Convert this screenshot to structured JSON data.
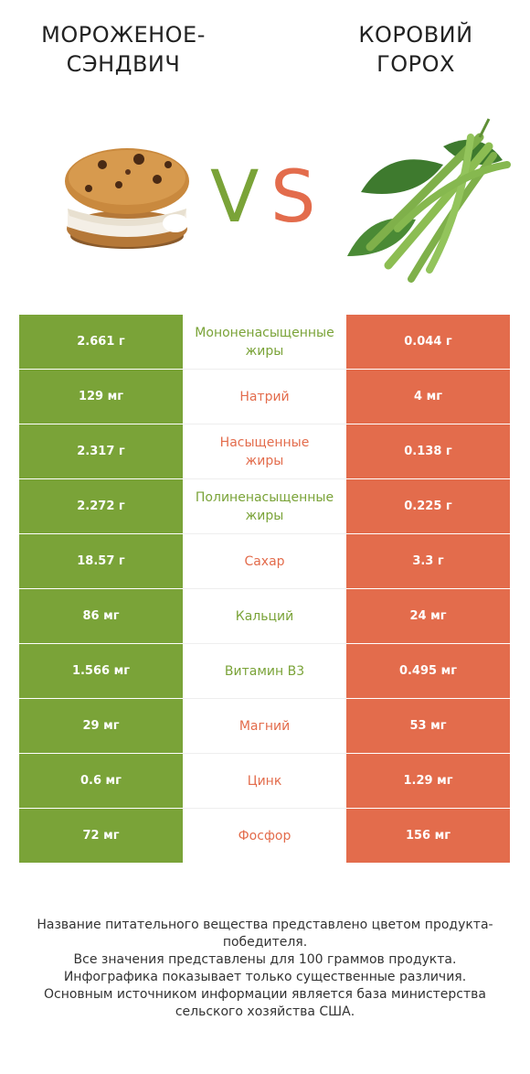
{
  "header": {
    "left_title": "МОРОЖЕНОЕ-\nСЭНДВИЧ",
    "right_title": "КОРОВИЙ\nГОРОХ",
    "vs_v": "V",
    "vs_s": "S"
  },
  "colors": {
    "left_green": "#7aa338",
    "right_red": "#e36c4c"
  },
  "rows": [
    {
      "left": "2.661 г",
      "name": "Мононенасыщенные\nжиры",
      "right": "0.044 г",
      "winner": "left"
    },
    {
      "left": "129 мг",
      "name": "Натрий",
      "right": "4 мг",
      "winner": "right"
    },
    {
      "left": "2.317 г",
      "name": "Насыщенные\nжиры",
      "right": "0.138 г",
      "winner": "right"
    },
    {
      "left": "2.272 г",
      "name": "Полиненасыщенные\nжиры",
      "right": "0.225 г",
      "winner": "left"
    },
    {
      "left": "18.57 г",
      "name": "Сахар",
      "right": "3.3 г",
      "winner": "right"
    },
    {
      "left": "86 мг",
      "name": "Кальций",
      "right": "24 мг",
      "winner": "left"
    },
    {
      "left": "1.566 мг",
      "name": "Витамин B3",
      "right": "0.495 мг",
      "winner": "left"
    },
    {
      "left": "29 мг",
      "name": "Магний",
      "right": "53 мг",
      "winner": "right"
    },
    {
      "left": "0.6 мг",
      "name": "Цинк",
      "right": "1.29 мг",
      "winner": "right"
    },
    {
      "left": "72 мг",
      "name": "Фосфор",
      "right": "156 мг",
      "winner": "right"
    }
  ],
  "footer": {
    "line1": "Название питательного вещества представлено цветом продукта-победителя.",
    "line2": "Все значения представлены для 100 граммов продукта.",
    "line3": "Инфографика показывает только существенные различия.",
    "line4": "Основным источником информации является база министерства сельского хозяйства США."
  }
}
